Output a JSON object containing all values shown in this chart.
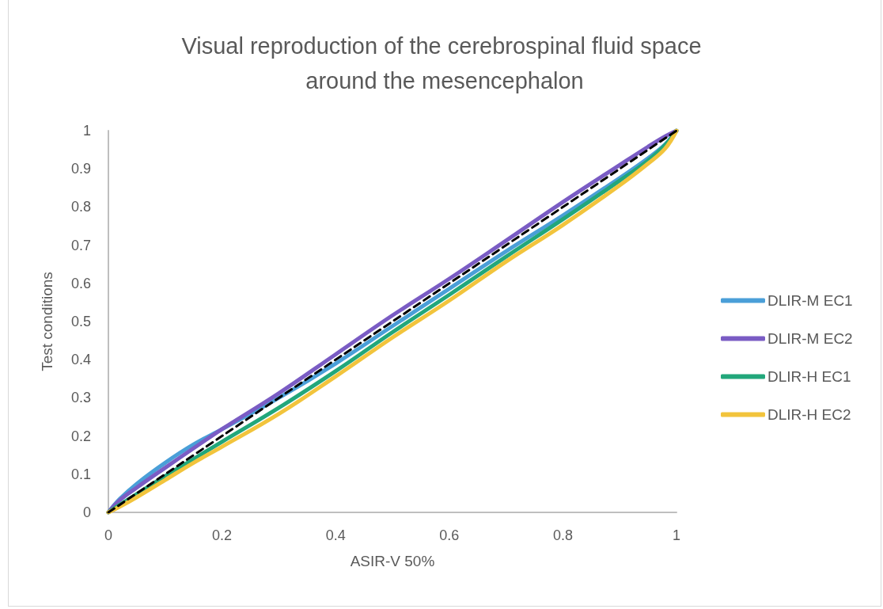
{
  "chart_data": {
    "type": "line",
    "title": "Visual reproduction of the cerebrospinal fluid space around the mesencephalon",
    "xlabel": "ASIR-V 50%",
    "ylabel": "Test conditions",
    "xlim": [
      0,
      1
    ],
    "ylim": [
      0,
      1
    ],
    "xticks": [
      0,
      0.2,
      0.4,
      0.6,
      0.8,
      1
    ],
    "yticks": [
      0,
      0.1,
      0.2,
      0.3,
      0.4,
      0.5,
      0.6,
      0.7,
      0.8,
      0.9,
      1
    ],
    "legend": "right",
    "marker": "none",
    "line_style": "solid",
    "x": [
      0,
      0.02,
      0.05,
      0.1,
      0.15,
      0.2,
      0.3,
      0.4,
      0.5,
      0.6,
      0.7,
      0.8,
      0.9,
      0.95,
      0.98,
      1
    ],
    "series": [
      {
        "name": "DLIR-M EC1",
        "color": "#4a9fd8",
        "values": [
          0,
          0.035,
          0.075,
          0.13,
          0.178,
          0.218,
          0.3,
          0.39,
          0.488,
          0.586,
          0.684,
          0.778,
          0.876,
          0.928,
          0.964,
          1
        ]
      },
      {
        "name": "DLIR-M EC2",
        "color": "#7a5cc4",
        "values": [
          0,
          0.032,
          0.065,
          0.117,
          0.168,
          0.218,
          0.312,
          0.414,
          0.516,
          0.612,
          0.712,
          0.813,
          0.91,
          0.958,
          0.985,
          1
        ]
      },
      {
        "name": "DLIR-H EC1",
        "color": "#22a77b",
        "values": [
          0,
          0.02,
          0.048,
          0.095,
          0.14,
          0.185,
          0.274,
          0.37,
          0.472,
          0.57,
          0.67,
          0.768,
          0.869,
          0.922,
          0.962,
          1
        ]
      },
      {
        "name": "DLIR-H EC2",
        "color": "#f2c43c",
        "values": [
          0,
          0.015,
          0.04,
          0.085,
          0.13,
          0.172,
          0.258,
          0.356,
          0.458,
          0.555,
          0.657,
          0.753,
          0.857,
          0.914,
          0.953,
          1
        ]
      },
      {
        "color": "#000000",
        "line_style": "dashed",
        "x": [
          0,
          1
        ],
        "values": [
          0,
          1
        ]
      }
    ]
  }
}
